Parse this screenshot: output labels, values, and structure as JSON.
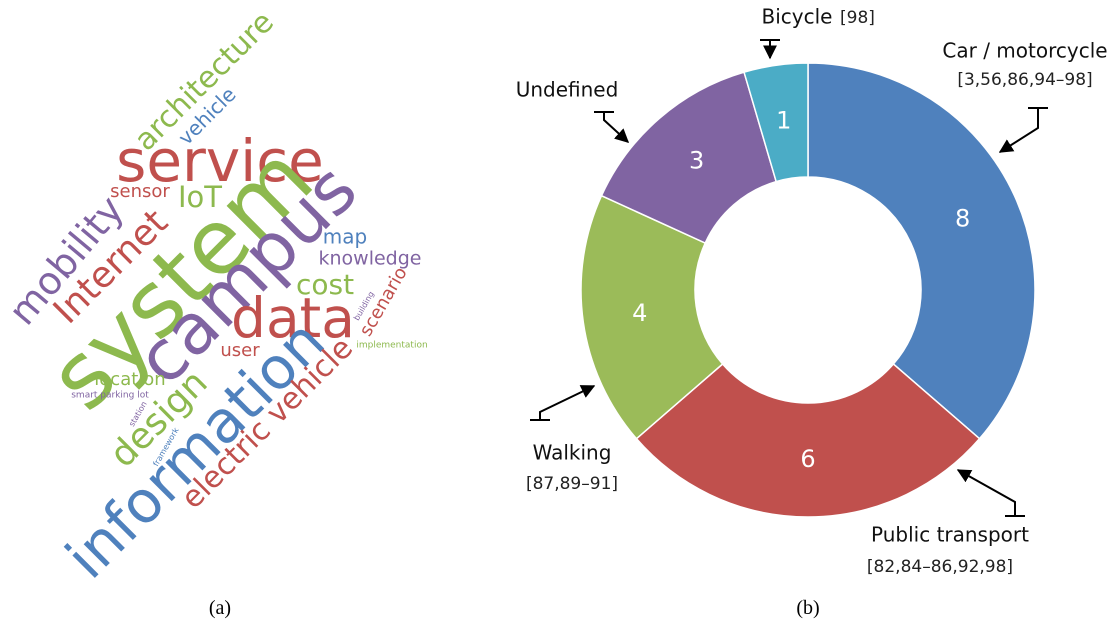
{
  "chart_data": [
    {
      "type": "wordcloud",
      "caption": "(a)",
      "words": [
        {
          "text": "architecture",
          "color": "#8db94e"
        },
        {
          "text": "vehicle",
          "color": "#4f81bd"
        },
        {
          "text": "service",
          "color": "#c0504d"
        },
        {
          "text": "IoT",
          "color": "#8db94e"
        },
        {
          "text": "sensor",
          "color": "#c0504d"
        },
        {
          "text": "mobility",
          "color": "#8064a2"
        },
        {
          "text": "Internet",
          "color": "#c0504d"
        },
        {
          "text": "system",
          "color": "#8db94e"
        },
        {
          "text": "campus",
          "color": "#8064a2"
        },
        {
          "text": "map",
          "color": "#4f81bd"
        },
        {
          "text": "knowledge",
          "color": "#8064a2"
        },
        {
          "text": "cost",
          "color": "#8db94e"
        },
        {
          "text": "data",
          "color": "#c0504d"
        },
        {
          "text": "scenario",
          "color": "#c0504d"
        },
        {
          "text": "building",
          "color": "#8064a2"
        },
        {
          "text": "implementation",
          "color": "#8db94e"
        },
        {
          "text": "user",
          "color": "#c0504d"
        },
        {
          "text": "location",
          "color": "#8db94e"
        },
        {
          "text": "smart parking lot",
          "color": "#8064a2"
        },
        {
          "text": "station",
          "color": "#8064a2"
        },
        {
          "text": "design",
          "color": "#8db94e"
        },
        {
          "text": "framework",
          "color": "#4f81bd"
        },
        {
          "text": "information",
          "color": "#4f81bd"
        },
        {
          "text": "electric vehicle",
          "color": "#c0504d"
        }
      ]
    },
    {
      "type": "donut",
      "caption": "(b)",
      "categories": [
        "Car / motorcycle",
        "Public transport",
        "Walking",
        "Undefined",
        "Bicycle"
      ],
      "references": [
        "[3,56,86,94–98]",
        "[82,84–86,92,98]",
        "[87,89–91]",
        null,
        "[98]"
      ],
      "values": [
        8,
        6,
        4,
        3,
        1
      ],
      "colors": [
        "#4f81bd",
        "#c0504d",
        "#9bbb59",
        "#8064a2",
        "#4bacc6"
      ]
    }
  ]
}
